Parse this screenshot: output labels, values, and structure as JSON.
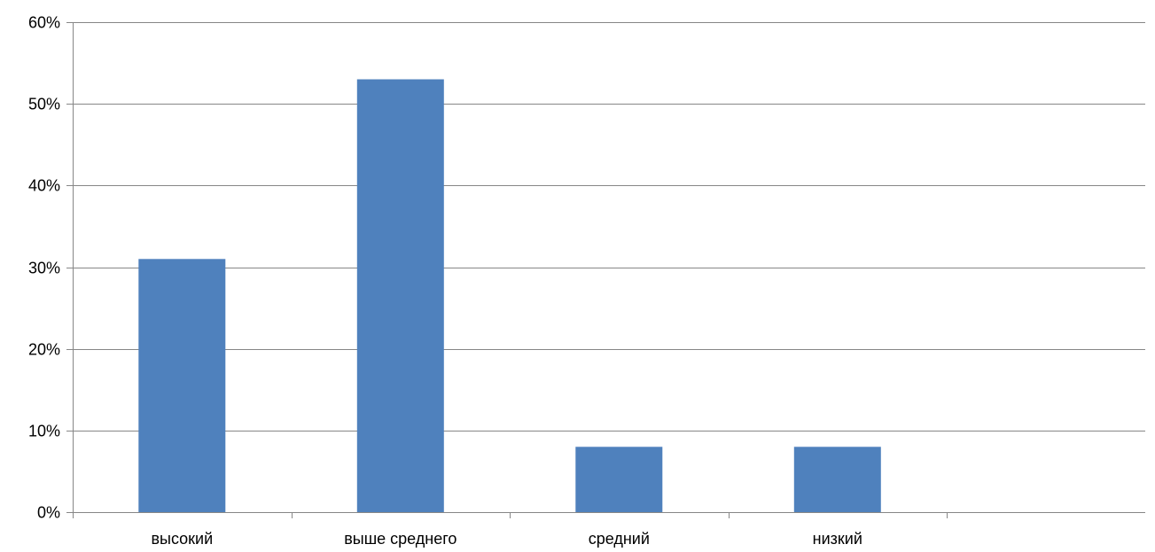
{
  "chart_data": {
    "type": "bar",
    "categories": [
      "высокий",
      "выше среднего",
      "средний",
      "низкий",
      ""
    ],
    "values": [
      31,
      53,
      8,
      8,
      null
    ],
    "ylim": [
      0,
      60
    ],
    "yticks": [
      0,
      10,
      20,
      30,
      40,
      50,
      60
    ],
    "ytick_labels": [
      "0%",
      "10%",
      "20%",
      "30%",
      "40%",
      "50%",
      "60%"
    ],
    "grid": true,
    "legend": "none",
    "bar_color": "#4F81BD",
    "gridline_color": "#878787",
    "title": "",
    "xlabel": "",
    "ylabel": ""
  }
}
